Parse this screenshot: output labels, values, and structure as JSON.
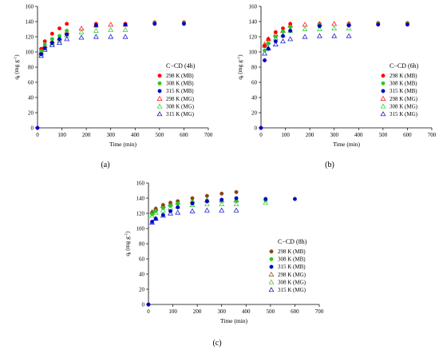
{
  "chart_data": [
    {
      "type": "scatter",
      "panel_label": "(a)",
      "title": "C−CD (4h)",
      "xlabel": "Time (min)",
      "ylabel": "q",
      "ylabel_sub": "t",
      "ylabel_unit": "(mg g",
      "ylabel_sup": "-1",
      "ylabel_close": ")",
      "xlim": [
        0,
        700
      ],
      "ylim": [
        0,
        160
      ],
      "xticks": [
        "0",
        "100",
        "200",
        "300",
        "400",
        "500",
        "600",
        "700"
      ],
      "yticks": [
        "0",
        "20",
        "40",
        "60",
        "80",
        "100",
        "120",
        "140",
        "160"
      ],
      "legend_position": "right",
      "series": [
        {
          "name": "298 K (MB)",
          "marker": "filled-circle",
          "color": "#ff0000",
          "x": [
            15,
            30,
            60,
            90,
            120,
            240,
            360,
            480,
            600
          ],
          "y": [
            104,
            114,
            124,
            131,
            137,
            137,
            137,
            139,
            139
          ]
        },
        {
          "name": "308 K (MB)",
          "marker": "filled-circle",
          "color": "#22cc22",
          "x": [
            15,
            30,
            60,
            90,
            120,
            240,
            360,
            480,
            600
          ],
          "y": [
            101,
            110,
            117,
            121,
            128,
            135,
            136,
            138,
            138
          ]
        },
        {
          "name": "315 K (MB)",
          "marker": "filled-circle",
          "color": "#0000cc",
          "x": [
            0,
            15,
            30,
            60,
            90,
            120,
            240,
            360,
            480,
            600
          ],
          "y": [
            0,
            97,
            105,
            112,
            117,
            123,
            135,
            136,
            137,
            137
          ]
        },
        {
          "name": "298 K (MG)",
          "marker": "open-triangle",
          "color": "#ff0000",
          "x": [
            15,
            30,
            60,
            90,
            120,
            180,
            240,
            300,
            360
          ],
          "y": [
            100,
            108,
            114,
            118,
            126,
            131,
            135,
            136,
            136
          ]
        },
        {
          "name": "308 K (MG)",
          "marker": "open-triangle",
          "color": "#22cc22",
          "x": [
            15,
            30,
            60,
            90,
            120,
            180,
            240,
            300,
            360
          ],
          "y": [
            98,
            105,
            111,
            115,
            122,
            126,
            128,
            129,
            129
          ]
        },
        {
          "name": "315 K (MG)",
          "marker": "open-triangle",
          "color": "#0000cc",
          "x": [
            15,
            30,
            60,
            90,
            120,
            180,
            240,
            300,
            360
          ],
          "y": [
            95,
            103,
            109,
            112,
            117,
            119,
            120,
            120,
            120
          ]
        }
      ]
    },
    {
      "type": "scatter",
      "panel_label": "(b)",
      "title": "C−CD (6h)",
      "xlabel": "Time (min)",
      "ylabel": "q",
      "ylabel_sub": "t",
      "ylabel_unit": "(mg g",
      "ylabel_sup": "-1",
      "ylabel_close": ")",
      "xlim": [
        0,
        700
      ],
      "ylim": [
        0,
        160
      ],
      "xticks": [
        "0",
        "100",
        "200",
        "300",
        "400",
        "500",
        "600",
        "700"
      ],
      "yticks": [
        "0",
        "20",
        "40",
        "60",
        "80",
        "100",
        "120",
        "140",
        "160"
      ],
      "legend_position": "right",
      "series": [
        {
          "name": "298 K (MB)",
          "marker": "filled-circle",
          "color": "#ff0000",
          "x": [
            15,
            30,
            60,
            90,
            120,
            240,
            360,
            480,
            600
          ],
          "y": [
            108,
            117,
            126,
            131,
            137,
            137,
            137,
            138,
            138
          ]
        },
        {
          "name": "308 K (MB)",
          "marker": "filled-circle",
          "color": "#22cc22",
          "x": [
            15,
            30,
            60,
            90,
            120,
            240,
            360,
            480,
            600
          ],
          "y": [
            102,
            111,
            120,
            127,
            133,
            136,
            136,
            137,
            137
          ]
        },
        {
          "name": "315 K (MB)",
          "marker": "filled-circle",
          "color": "#0000cc",
          "x": [
            0,
            15,
            30,
            60,
            90,
            120,
            240,
            360,
            480,
            600
          ],
          "y": [
            0,
            89,
            104,
            114,
            121,
            128,
            134,
            135,
            136,
            136
          ]
        },
        {
          "name": "298 K (MG)",
          "marker": "open-triangle",
          "color": "#ff0000",
          "x": [
            15,
            30,
            60,
            90,
            120,
            180,
            240,
            300,
            360
          ],
          "y": [
            110,
            117,
            123,
            128,
            135,
            136,
            137,
            137,
            137
          ]
        },
        {
          "name": "308 K (MG)",
          "marker": "open-triangle",
          "color": "#22cc22",
          "x": [
            15,
            30,
            60,
            90,
            120,
            180,
            240,
            300,
            360
          ],
          "y": [
            108,
            113,
            118,
            122,
            128,
            130,
            130,
            131,
            131
          ]
        },
        {
          "name": "315 K (MG)",
          "marker": "open-triangle",
          "color": "#0000cc",
          "x": [
            15,
            30,
            60,
            90,
            120,
            180,
            240,
            300,
            360
          ],
          "y": [
            98,
            105,
            110,
            114,
            117,
            120,
            121,
            121,
            121
          ]
        }
      ]
    },
    {
      "type": "scatter",
      "panel_label": "(c)",
      "title": "C−CD (8h)",
      "xlabel": "Time (min)",
      "ylabel": "q",
      "ylabel_sub": "t",
      "ylabel_unit": "(mg g",
      "ylabel_sup": "-1",
      "ylabel_close": ")",
      "xlim": [
        0,
        700
      ],
      "ylim": [
        0,
        160
      ],
      "xticks": [
        "0",
        "100",
        "200",
        "300",
        "400",
        "500",
        "600",
        "700"
      ],
      "yticks": [
        "0",
        "20",
        "40",
        "60",
        "80",
        "100",
        "120",
        "140",
        "160"
      ],
      "legend_position": "right",
      "series": [
        {
          "name": "298 K (MB)",
          "marker": "filled-circle",
          "color": "#8b4513",
          "x": [
            15,
            30,
            60,
            90,
            120,
            180,
            240,
            300,
            360
          ],
          "y": [
            121,
            126,
            131,
            134,
            136,
            140,
            143,
            146,
            148
          ]
        },
        {
          "name": "308 K (MB)",
          "marker": "filled-circle",
          "color": "#22cc22",
          "x": [
            15,
            30,
            60,
            90,
            120,
            180,
            240,
            300,
            360,
            480
          ],
          "y": [
            119,
            123,
            127,
            130,
            133,
            135,
            137,
            137,
            137,
            137
          ]
        },
        {
          "name": "315 K (MB)",
          "marker": "filled-circle",
          "color": "#0000cc",
          "x": [
            0,
            15,
            30,
            60,
            90,
            120,
            180,
            240,
            300,
            360,
            480,
            600
          ],
          "y": [
            0,
            109,
            113,
            118,
            123,
            128,
            133,
            136,
            138,
            140,
            139,
            139
          ]
        },
        {
          "name": "298 K (MG)",
          "marker": "open-triangle",
          "color": "#8b4513",
          "x": [
            15,
            30,
            60,
            90,
            120,
            180,
            240,
            300,
            360
          ],
          "y": [
            122,
            126,
            130,
            132,
            134,
            136,
            137,
            137,
            137
          ]
        },
        {
          "name": "308 K (MG)",
          "marker": "open-triangle",
          "color": "#22cc22",
          "x": [
            15,
            30,
            60,
            90,
            120,
            180,
            240,
            300,
            360,
            480
          ],
          "y": [
            117,
            121,
            124,
            127,
            129,
            131,
            132,
            132,
            132,
            134
          ]
        },
        {
          "name": "315 K (MG)",
          "marker": "open-triangle",
          "color": "#0000cc",
          "x": [
            15,
            30,
            60,
            90,
            120,
            180,
            240,
            300,
            360
          ],
          "y": [
            108,
            113,
            117,
            120,
            121,
            123,
            124,
            124,
            124
          ]
        }
      ]
    }
  ]
}
